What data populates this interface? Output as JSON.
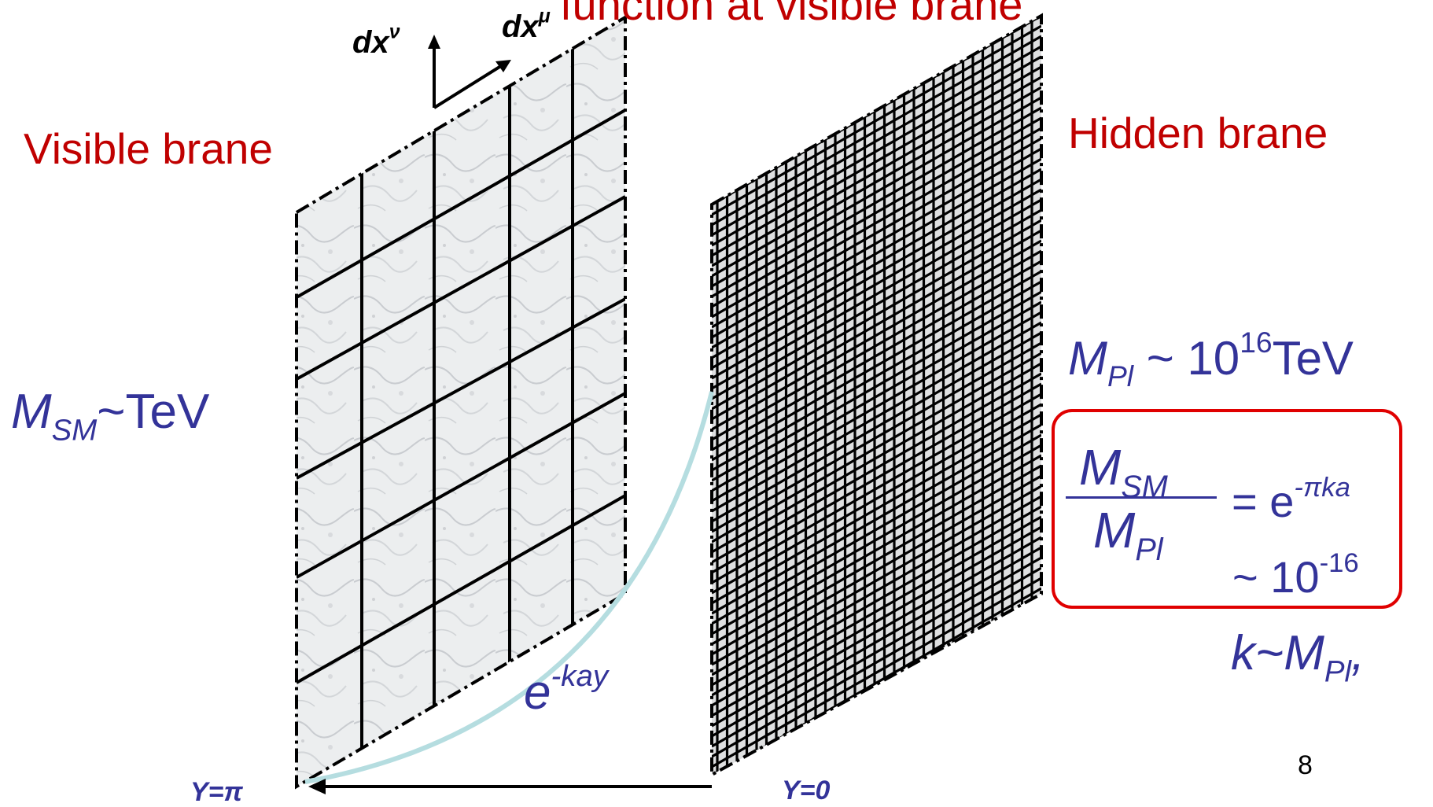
{
  "header": {
    "partial_title": "function at visible brane"
  },
  "visible_brane": {
    "label": "Visible brane",
    "axis_v": "dx",
    "axis_v_sup": "ν",
    "axis_mu": "dx",
    "axis_mu_sup": "μ",
    "position_label": "Y=π",
    "mass_label": "M",
    "mass_sub": "SM",
    "mass_value": "~TeV"
  },
  "hidden_brane": {
    "label": "Hidden brane",
    "position_label": "Y=0",
    "mass_label": "M",
    "mass_sub": "Pl",
    "mass_value_prefix": " ~ 10",
    "mass_value_exp": "16",
    "mass_value_unit": "TeV"
  },
  "warp": {
    "base": "e",
    "exponent": "-kay"
  },
  "ratio": {
    "numerator": "M",
    "numerator_sub": "SM",
    "denominator": "M",
    "denominator_sub": "Pl",
    "equals": "= e",
    "equals_exp": "-πka",
    "approx": "~ 10",
    "approx_exp": "-16"
  },
  "k_relation": {
    "k": "k~M",
    "k_sub": "Pl",
    "tail": ","
  },
  "slide_number": "8",
  "colors": {
    "label_red": "#c00000",
    "math_blue": "#333399",
    "box_red": "#e00000",
    "curve": "#b5dde0"
  }
}
